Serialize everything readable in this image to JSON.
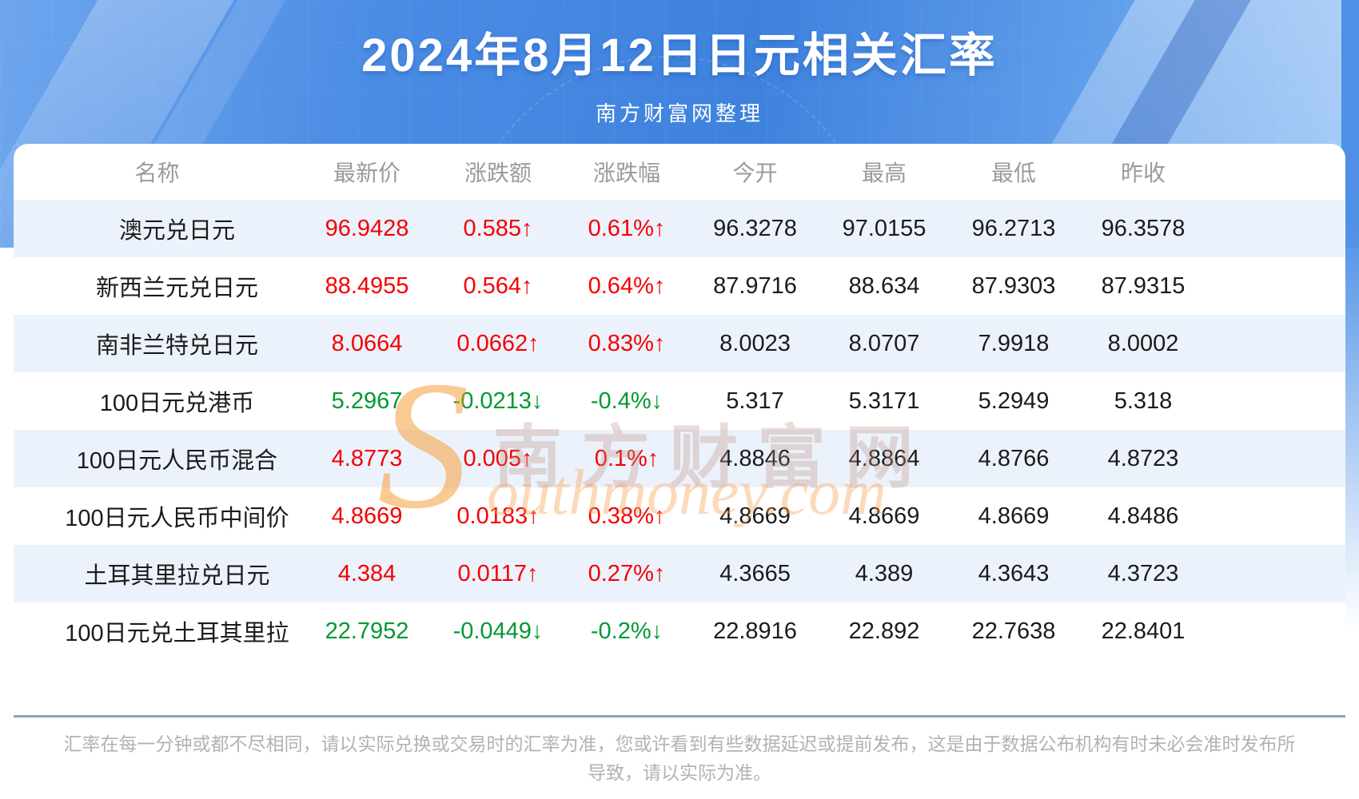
{
  "banner": {
    "title": "2024年8月12日日元相关汇率",
    "subtitle": "南方财富网整理"
  },
  "table": {
    "columns": [
      "名称",
      "最新价",
      "涨跌额",
      "涨跌幅",
      "今开",
      "最高",
      "最低",
      "昨收"
    ],
    "rows": [
      {
        "name": "澳元兑日元",
        "last": "96.9428",
        "change": "0.585↑",
        "change_pct": "0.61%↑",
        "open": "96.3278",
        "high": "97.0155",
        "low": "96.2713",
        "prev_close": "96.3578",
        "direction": "up"
      },
      {
        "name": "新西兰元兑日元",
        "last": "88.4955",
        "change": "0.564↑",
        "change_pct": "0.64%↑",
        "open": "87.9716",
        "high": "88.634",
        "low": "87.9303",
        "prev_close": "87.9315",
        "direction": "up"
      },
      {
        "name": "南非兰特兑日元",
        "last": "8.0664",
        "change": "0.0662↑",
        "change_pct": "0.83%↑",
        "open": "8.0023",
        "high": "8.0707",
        "low": "7.9918",
        "prev_close": "8.0002",
        "direction": "up"
      },
      {
        "name": "100日元兑港币",
        "last": "5.2967",
        "change": "-0.0213↓",
        "change_pct": "-0.4%↓",
        "open": "5.317",
        "high": "5.3171",
        "low": "5.2949",
        "prev_close": "5.318",
        "direction": "down"
      },
      {
        "name": "100日元人民币混合",
        "last": "4.8773",
        "change": "0.005↑",
        "change_pct": "0.1%↑",
        "open": "4.8846",
        "high": "4.8864",
        "low": "4.8766",
        "prev_close": "4.8723",
        "direction": "up"
      },
      {
        "name": "100日元人民币中间价",
        "last": "4.8669",
        "change": "0.0183↑",
        "change_pct": "0.38%↑",
        "open": "4.8669",
        "high": "4.8669",
        "low": "4.8669",
        "prev_close": "4.8486",
        "direction": "up"
      },
      {
        "name": "土耳其里拉兑日元",
        "last": "4.384",
        "change": "0.0117↑",
        "change_pct": "0.27%↑",
        "open": "4.3665",
        "high": "4.389",
        "low": "4.3643",
        "prev_close": "4.3723",
        "direction": "up"
      },
      {
        "name": "100日元兑土耳其里拉",
        "last": "22.7952",
        "change": "-0.0449↓",
        "change_pct": "-0.2%↓",
        "open": "22.8916",
        "high": "22.892",
        "low": "22.7638",
        "prev_close": "22.8401",
        "direction": "down"
      }
    ]
  },
  "watermark": {
    "initial": "S",
    "cn": "南方财富网",
    "en": "outhmoney.com"
  },
  "footer": {
    "disclaimer": "汇率在每一分钟或都不尽相同，请以实际兑换或交易时的汇率为准，您或许看到有些数据延迟或提前发布，这是由于数据公布机构有时未必会准时发布所导致，请以实际为准。"
  },
  "colors": {
    "up": "#f40000",
    "down": "#009933",
    "banner_blue": "#4a8ce4",
    "row_alt": "#ecf2fb",
    "divider": "#87a3ba"
  },
  "chart_data": {
    "type": "table",
    "title": "2024年8月12日日元相关汇率",
    "subtitle": "南方财富网整理",
    "columns": [
      "名称",
      "最新价",
      "涨跌额",
      "涨跌幅",
      "今开",
      "最高",
      "最低",
      "昨收"
    ],
    "rows": [
      [
        "澳元兑日元",
        96.9428,
        0.585,
        "0.61%",
        96.3278,
        97.0155,
        96.2713,
        96.3578
      ],
      [
        "新西兰元兑日元",
        88.4955,
        0.564,
        "0.64%",
        87.9716,
        88.634,
        87.9303,
        87.9315
      ],
      [
        "南非兰特兑日元",
        8.0664,
        0.0662,
        "0.83%",
        8.0023,
        8.0707,
        7.9918,
        8.0002
      ],
      [
        "100日元兑港币",
        5.2967,
        -0.0213,
        "-0.4%",
        5.317,
        5.3171,
        5.2949,
        5.318
      ],
      [
        "100日元人民币混合",
        4.8773,
        0.005,
        "0.1%",
        4.8846,
        4.8864,
        4.8766,
        4.8723
      ],
      [
        "100日元人民币中间价",
        4.8669,
        0.0183,
        "0.38%",
        4.8669,
        4.8669,
        4.8669,
        4.8486
      ],
      [
        "土耳其里拉兑日元",
        4.384,
        0.0117,
        "0.27%",
        4.3665,
        4.389,
        4.3643,
        4.3723
      ],
      [
        "100日元兑土耳其里拉",
        22.7952,
        -0.0449,
        "-0.2%",
        22.8916,
        22.892,
        22.7638,
        22.8401
      ]
    ]
  }
}
